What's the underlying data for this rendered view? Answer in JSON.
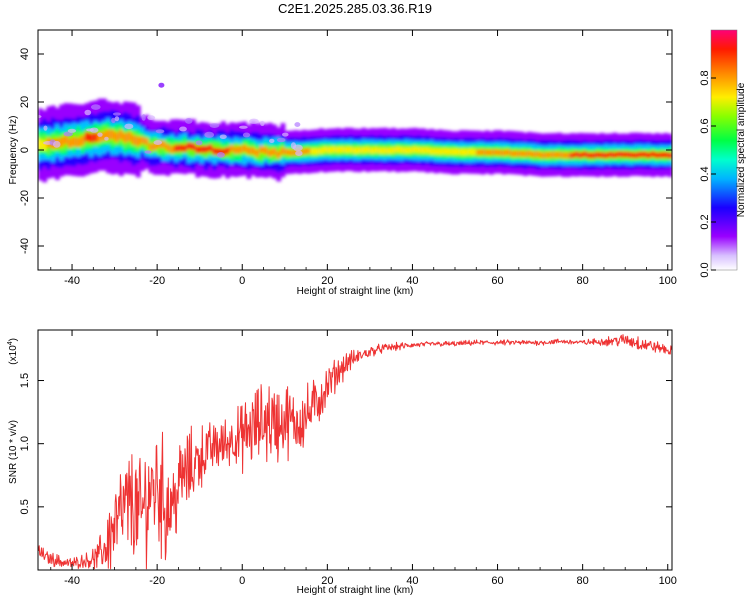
{
  "title": "C2E1.2025.285.03.36.R19",
  "chart_data": [
    {
      "type": "heatmap",
      "xlabel": "Height of straight line (km)",
      "ylabel": "Frequency (Hz)",
      "xlim": [
        -48,
        101
      ],
      "ylim": [
        -50,
        50
      ],
      "xticks": [
        -40,
        -20,
        0,
        20,
        40,
        60,
        80,
        100
      ],
      "yticks": [
        -40,
        -20,
        0,
        20,
        40
      ],
      "colorbar": {
        "label": "Normalized spectral amplitude",
        "range": [
          0,
          1
        ],
        "ticks": [
          "0.0",
          "0.2",
          "0.4",
          "0.6",
          "0.8"
        ],
        "colors": [
          "#e8d8ff",
          "#9900ff",
          "#2200ff",
          "#00c8ff",
          "#00ff66",
          "#66ff00",
          "#ffee00",
          "#ff9900",
          "#ff2200",
          "#ff0066"
        ]
      },
      "ridge": {
        "x": [
          -48,
          -44,
          -40,
          -36,
          -32,
          -28,
          -25,
          -22,
          -18,
          -14,
          -10,
          -5,
          0,
          5,
          10,
          20,
          30,
          40,
          50,
          60,
          70,
          80,
          90,
          100
        ],
        "freq": [
          2,
          3,
          4,
          5,
          6,
          5,
          4,
          2,
          1,
          1,
          0,
          0,
          0,
          -1,
          -1,
          0,
          0,
          0,
          -1,
          -1,
          -2,
          -2,
          -2,
          -2
        ],
        "peak_amplitude": [
          0.7,
          0.75,
          0.8,
          0.85,
          0.8,
          0.8,
          0.75,
          0.75,
          0.8,
          0.9,
          0.9,
          0.85,
          0.8,
          0.8,
          0.75,
          0.7,
          0.7,
          0.7,
          0.7,
          0.75,
          0.8,
          0.85,
          0.9,
          0.85
        ]
      },
      "outlier": {
        "x": -19,
        "freq": 27
      }
    },
    {
      "type": "line",
      "xlabel": "Height of straight line (km)",
      "ylabel": "SNR (10 * v/v)",
      "yscale_label": "(x10",
      "yscale_exp": "4",
      "xlim": [
        -48,
        101
      ],
      "ylim": [
        0,
        1.9
      ],
      "xticks": [
        -40,
        -20,
        0,
        20,
        40,
        60,
        80,
        100
      ],
      "yticks": [
        "0.5",
        "1.0",
        "1.5"
      ],
      "series": [
        {
          "color": "#ee3333",
          "x": [
            -48,
            -46,
            -44,
            -42,
            -40,
            -38,
            -36,
            -34,
            -32,
            -30,
            -28,
            -26,
            -24,
            -22,
            -20,
            -18,
            -16,
            -14,
            -12,
            -10,
            -8,
            -6,
            -4,
            -2,
            0,
            2,
            4,
            6,
            8,
            10,
            12,
            14,
            16,
            18,
            20,
            22,
            25,
            28,
            31,
            34,
            37,
            40,
            45,
            50,
            55,
            60,
            65,
            70,
            75,
            80,
            85,
            90,
            93,
            95,
            98,
            101
          ],
          "y": [
            0.15,
            0.1,
            0.08,
            0.06,
            0.05,
            0.07,
            0.08,
            0.1,
            0.2,
            0.35,
            0.45,
            0.55,
            0.4,
            0.6,
            0.7,
            0.5,
            0.55,
            0.75,
            0.8,
            0.9,
            0.95,
            0.98,
            1.0,
            1.05,
            1.05,
            1.1,
            1.15,
            1.2,
            1.15,
            1.2,
            1.15,
            1.2,
            1.25,
            1.35,
            1.45,
            1.55,
            1.65,
            1.7,
            1.74,
            1.76,
            1.77,
            1.78,
            1.79,
            1.79,
            1.8,
            1.8,
            1.8,
            1.8,
            1.81,
            1.8,
            1.81,
            1.82,
            1.8,
            1.78,
            1.76,
            1.73
          ],
          "noise": [
            0.06,
            0.05,
            0.05,
            0.05,
            0.04,
            0.05,
            0.06,
            0.1,
            0.25,
            0.35,
            0.4,
            0.4,
            0.45,
            0.45,
            0.5,
            0.45,
            0.35,
            0.3,
            0.3,
            0.25,
            0.2,
            0.2,
            0.2,
            0.2,
            0.25,
            0.3,
            0.3,
            0.35,
            0.3,
            0.3,
            0.25,
            0.25,
            0.22,
            0.2,
            0.15,
            0.12,
            0.08,
            0.05,
            0.04,
            0.03,
            0.03,
            0.02,
            0.02,
            0.02,
            0.02,
            0.02,
            0.02,
            0.02,
            0.02,
            0.02,
            0.03,
            0.05,
            0.06,
            0.05,
            0.04,
            0.04
          ]
        }
      ]
    }
  ]
}
